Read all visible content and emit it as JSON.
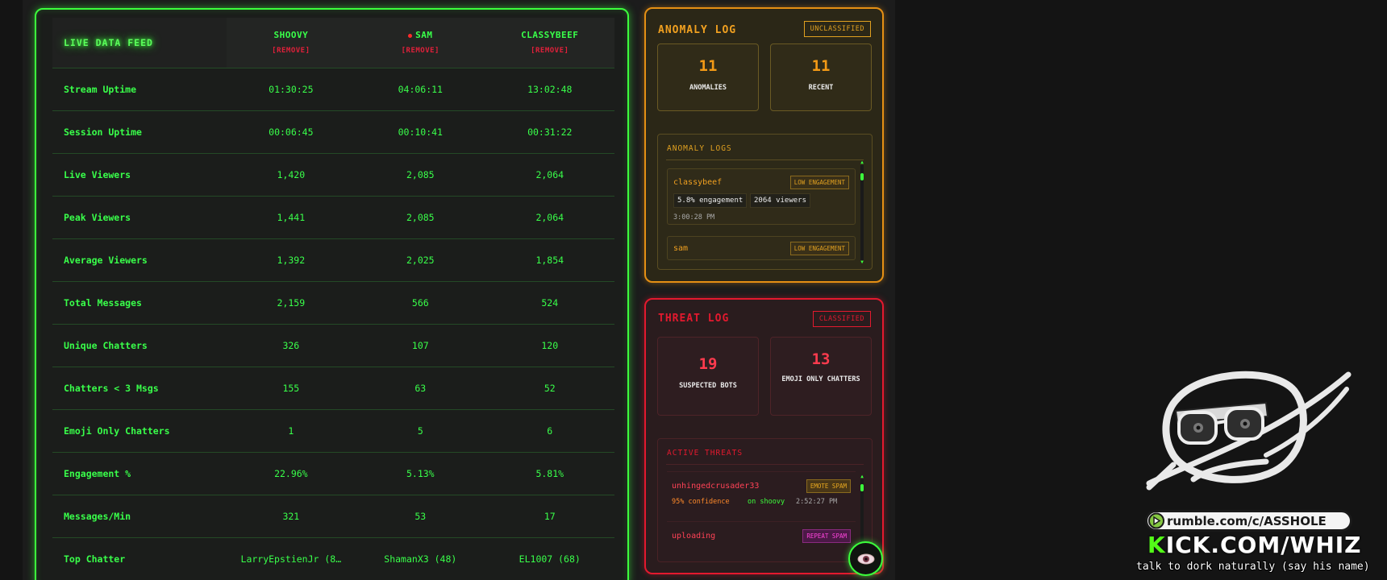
{
  "feed": {
    "title": "LIVE DATA FEED",
    "columns": [
      {
        "name": "SHOOVY",
        "remove_label": "[REMOVE]",
        "live": false
      },
      {
        "name": "SAM",
        "remove_label": "[REMOVE]",
        "live": true
      },
      {
        "name": "CLASSYBEEF",
        "remove_label": "[REMOVE]",
        "live": false
      }
    ],
    "rows": [
      {
        "label": "Stream Uptime",
        "values": [
          "01:30:25",
          "04:06:11",
          "13:02:48"
        ]
      },
      {
        "label": "Session Uptime",
        "values": [
          "00:06:45",
          "00:10:41",
          "00:31:22"
        ]
      },
      {
        "label": "Live Viewers",
        "values": [
          "1,420",
          "2,085",
          "2,064"
        ]
      },
      {
        "label": "Peak Viewers",
        "values": [
          "1,441",
          "2,085",
          "2,064"
        ]
      },
      {
        "label": "Average Viewers",
        "values": [
          "1,392",
          "2,025",
          "1,854"
        ]
      },
      {
        "label": "Total Messages",
        "values": [
          "2,159",
          "566",
          "524"
        ]
      },
      {
        "label": "Unique Chatters",
        "values": [
          "326",
          "107",
          "120"
        ]
      },
      {
        "label": "Chatters < 3 Msgs",
        "values": [
          "155",
          "63",
          "52"
        ]
      },
      {
        "label": "Emoji Only Chatters",
        "values": [
          "1",
          "5",
          "6"
        ]
      },
      {
        "label": "Engagement %",
        "values": [
          "22.96%",
          "5.13%",
          "5.81%"
        ]
      },
      {
        "label": "Messages/Min",
        "values": [
          "321",
          "53",
          "17"
        ]
      },
      {
        "label": "Top Chatter",
        "values": [
          "LarryEpstienJr (8…",
          "ShamanX3 (48)",
          "EL1007 (68)"
        ]
      }
    ]
  },
  "anomaly": {
    "title": "ANOMALY LOG",
    "badge": "UNCLASSIFIED",
    "stats": [
      {
        "value": "11",
        "label": "ANOMALIES"
      },
      {
        "value": "11",
        "label": "RECENT"
      }
    ],
    "logs_title": "ANOMALY LOGS",
    "entries": [
      {
        "name": "classybeef",
        "tag": "LOW ENGAGEMENT",
        "chips": [
          "5.8% engagement",
          "2064 viewers"
        ],
        "time": "3:00:28 PM"
      },
      {
        "name": "sam",
        "tag": "LOW ENGAGEMENT"
      }
    ]
  },
  "threat": {
    "title": "THREAT LOG",
    "badge": "CLASSIFIED",
    "stats": [
      {
        "value": "19",
        "label": "SUSPECTED BOTS"
      },
      {
        "value": "13",
        "label": "EMOJI ONLY CHATTERS"
      }
    ],
    "active_title": "ACTIVE THREATS",
    "entries": [
      {
        "name": "unhingedcrusader33",
        "tag": "EMOTE SPAM",
        "confidence": "95% confidence",
        "channel": "on shoovy",
        "time": "2:52:27 PM"
      },
      {
        "name": "uploading",
        "tag": "REPEAT SPAM"
      }
    ]
  },
  "eye_button": {
    "icon": "eye-icon"
  },
  "overlay": {
    "rumble": "rumble.com/c/ASSHOLE",
    "kick_k": "K",
    "kick_rest": "ICK.COM/WHIZ",
    "tagline": "talk to dork naturally (say his name)"
  }
}
